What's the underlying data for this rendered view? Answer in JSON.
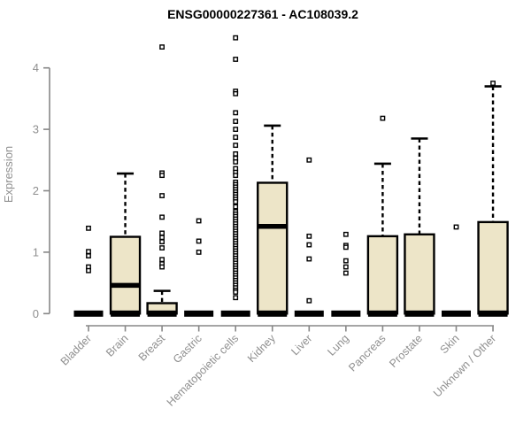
{
  "colors": {
    "background": "#ffffff",
    "axis": "#878787",
    "tick_label": "#8f8f8f",
    "box_fill": "#ede5c8",
    "box_stroke": "#000000",
    "median": "#000000",
    "outlier_fill": "#ffffff",
    "title": "#000000"
  },
  "chart_data": {
    "type": "boxplot",
    "title": "ENSG00000227361 - AC108039.2",
    "xlabel": "",
    "ylabel": "Expression",
    "yticks": [
      0,
      1,
      2,
      3,
      4
    ],
    "ylim": [
      0,
      4.6
    ],
    "grid": false,
    "legend": "none",
    "orientation": "vertical",
    "categories": [
      "Bladder",
      "Brain",
      "Breast",
      "Gastric",
      "Hematopoietic cells",
      "Kidney",
      "Liver",
      "Lung",
      "Pancreas",
      "Prostate",
      "Skin",
      "Unknown / Other"
    ],
    "boxes": [
      {
        "category": "Bladder",
        "whisker_low": 0,
        "q1": 0,
        "median": 0,
        "q3": 0,
        "whisker_high": 0,
        "outliers": [
          1.39,
          1.01,
          0.94,
          0.76,
          0.7
        ]
      },
      {
        "category": "Brain",
        "whisker_low": 0,
        "q1": 0,
        "median": 0.46,
        "q3": 1.25,
        "whisker_high": 2.28,
        "outliers": []
      },
      {
        "category": "Breast",
        "whisker_low": 0,
        "q1": 0,
        "median": 0,
        "q3": 0.17,
        "whisker_high": 0.37,
        "outliers": [
          4.34,
          2.29,
          2.25,
          1.92,
          1.57,
          1.31,
          1.24,
          1.17,
          1.07,
          0.88,
          0.81,
          0.76
        ]
      },
      {
        "category": "Gastric",
        "whisker_low": 0,
        "q1": 0,
        "median": 0,
        "q3": 0,
        "whisker_high": 0,
        "outliers": [
          1.51,
          1.18,
          1.0
        ]
      },
      {
        "category": "Hematopoietic cells",
        "whisker_low": 0,
        "q1": 0,
        "median": 0,
        "q3": 0,
        "whisker_high": 0,
        "outliers": [
          4.49,
          4.14,
          3.62,
          3.58,
          3.27,
          3.13,
          3.0,
          2.87,
          2.74,
          2.6,
          2.53,
          2.47,
          2.36,
          2.3,
          2.25,
          2.14,
          2.1,
          2.06,
          2.02,
          1.98,
          1.94,
          1.9,
          1.86,
          1.82,
          1.74,
          1.66,
          1.62,
          1.58,
          1.54,
          1.5,
          1.46,
          1.42,
          1.38,
          1.34,
          1.3,
          1.26,
          1.22,
          1.18,
          1.14,
          1.1,
          1.06,
          1.02,
          0.98,
          0.94,
          0.9,
          0.86,
          0.82,
          0.78,
          0.74,
          0.7,
          0.66,
          0.62,
          0.58,
          0.54,
          0.5,
          0.46,
          0.42,
          0.38,
          0.35,
          0.26
        ]
      },
      {
        "category": "Kidney",
        "whisker_low": 0,
        "q1": 0,
        "median": 1.42,
        "q3": 2.13,
        "whisker_high": 3.06,
        "outliers": []
      },
      {
        "category": "Liver",
        "whisker_low": 0,
        "q1": 0,
        "median": 0,
        "q3": 0,
        "whisker_high": 0,
        "outliers": [
          2.5,
          1.26,
          1.12,
          0.89,
          0.21
        ]
      },
      {
        "category": "Lung",
        "whisker_low": 0,
        "q1": 0,
        "median": 0,
        "q3": 0,
        "whisker_high": 0,
        "outliers": [
          1.29,
          1.11,
          1.08,
          0.86,
          0.76,
          0.66
        ]
      },
      {
        "category": "Pancreas",
        "whisker_low": 0,
        "q1": 0,
        "median": 0,
        "q3": 1.26,
        "whisker_high": 2.44,
        "outliers": [
          3.18
        ]
      },
      {
        "category": "Prostate",
        "whisker_low": 0,
        "q1": 0,
        "median": 0,
        "q3": 1.29,
        "whisker_high": 2.85,
        "outliers": []
      },
      {
        "category": "Skin",
        "whisker_low": 0,
        "q1": 0,
        "median": 0,
        "q3": 0,
        "whisker_high": 0,
        "outliers": [
          1.41
        ]
      },
      {
        "category": "Unknown / Other",
        "whisker_low": 0,
        "q1": 0,
        "median": 0,
        "q3": 1.49,
        "whisker_high": 3.7,
        "outliers": [
          3.75
        ]
      }
    ]
  }
}
